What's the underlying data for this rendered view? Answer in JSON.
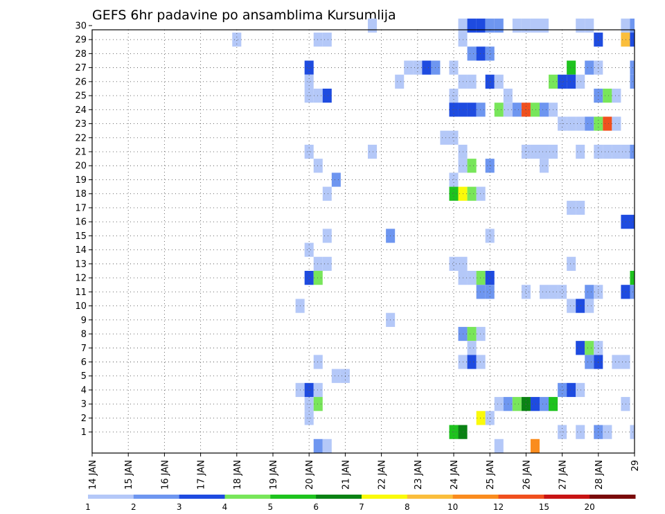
{
  "chart_data": {
    "type": "heatmap",
    "title": "GEFS 6hr padavine po ansamblima Kursumlija",
    "x_ticks": [
      "14 JAN",
      "15 JAN",
      "16 JAN",
      "17 JAN",
      "18 JAN",
      "19 JAN",
      "20 JAN",
      "21 JAN",
      "22 JAN",
      "23 JAN",
      "24 JAN",
      "25 JAN",
      "26 JAN",
      "27 JAN",
      "28 JAN",
      "29"
    ],
    "xlim": [
      "14 JAN",
      "29 JAN"
    ],
    "y_ticks": [
      "1",
      "2",
      "3",
      "4",
      "5",
      "6",
      "7",
      "8",
      "9",
      "10",
      "11",
      "12",
      "13",
      "14",
      "15",
      "16",
      "17",
      "18",
      "19",
      "20",
      "21",
      "22",
      "23",
      "24",
      "25",
      "26",
      "27",
      "28",
      "29",
      "30"
    ],
    "ylim": [
      0,
      30
    ],
    "grid": true,
    "step_hours": 6,
    "legend": {
      "placement": "bottom",
      "labels": [
        "1",
        "2",
        "3",
        "4",
        "5",
        "6",
        "7",
        "8",
        "10",
        "12",
        "15",
        "20"
      ],
      "colors": [
        "#b4c8f8",
        "#6e96f0",
        "#1e4be0",
        "#78e65a",
        "#1ec31e",
        "#0a8214",
        "#fafa0a",
        "#fabe3c",
        "#fa8c1e",
        "#f0501e",
        "#c81414",
        "#7a0a0a"
      ]
    },
    "cells": [
      {
        "m": 30,
        "h": [
          [
            24.25,
            1
          ],
          [
            26.25,
            1
          ],
          [
            26.5,
            1
          ],
          [
            27.5,
            1
          ],
          [
            27.75,
            1
          ],
          [
            28.75,
            1
          ],
          [
            29,
            2
          ],
          [
            21.75,
            1
          ],
          [
            24.75,
            3
          ],
          [
            25,
            2
          ],
          [
            25.25,
            2
          ],
          [
            25.75,
            1
          ],
          [
            26,
            1
          ]
        ]
      },
      {
        "m": 30,
        "h": [
          [
            24.5,
            3
          ]
        ]
      },
      {
        "m": 29,
        "h": [
          [
            18,
            1
          ],
          [
            20.25,
            1
          ],
          [
            20.5,
            1
          ],
          [
            24.25,
            1
          ],
          [
            28,
            3
          ],
          [
            28.75,
            8
          ],
          [
            29,
            3
          ]
        ]
      },
      {
        "m": 28,
        "h": [
          [
            24.5,
            2
          ],
          [
            24.75,
            3
          ],
          [
            25,
            2
          ]
        ]
      },
      {
        "m": 27,
        "h": [
          [
            20,
            3
          ],
          [
            22.75,
            1
          ],
          [
            23,
            1
          ],
          [
            23.25,
            3
          ],
          [
            23.5,
            2
          ],
          [
            24,
            1
          ],
          [
            27.25,
            5
          ],
          [
            27.75,
            2
          ],
          [
            28,
            1
          ],
          [
            29,
            2
          ]
        ]
      },
      {
        "m": 26,
        "h": [
          [
            20,
            1
          ],
          [
            22.5,
            1
          ],
          [
            24.25,
            1
          ],
          [
            24.5,
            1
          ],
          [
            25,
            3
          ],
          [
            25.25,
            1
          ],
          [
            26.75,
            4
          ],
          [
            27,
            3
          ],
          [
            27.25,
            3
          ],
          [
            27.5,
            1
          ],
          [
            29,
            2
          ]
        ]
      },
      {
        "m": 25,
        "h": [
          [
            20,
            1
          ],
          [
            20.25,
            1
          ],
          [
            20.5,
            3
          ],
          [
            24,
            1
          ],
          [
            25.5,
            1
          ],
          [
            28,
            2
          ],
          [
            28.25,
            4
          ],
          [
            28.5,
            1
          ]
        ]
      },
      {
        "m": 24,
        "h": [
          [
            24,
            3
          ],
          [
            24.25,
            3
          ],
          [
            24.5,
            3
          ],
          [
            24.75,
            2
          ],
          [
            25.25,
            4
          ],
          [
            25.5,
            1
          ],
          [
            25.75,
            2
          ],
          [
            26,
            10
          ],
          [
            26.25,
            4
          ],
          [
            26.5,
            2
          ],
          [
            26.75,
            1
          ]
        ]
      },
      {
        "m": 23,
        "h": [
          [
            27,
            1
          ],
          [
            27.25,
            1
          ],
          [
            27.5,
            1
          ],
          [
            27.75,
            2
          ],
          [
            28,
            4
          ],
          [
            28.25,
            10
          ],
          [
            28.5,
            1
          ]
        ]
      },
      {
        "m": 22,
        "h": [
          [
            23.75,
            1
          ],
          [
            24,
            1
          ]
        ]
      },
      {
        "m": 21,
        "h": [
          [
            20,
            1
          ],
          [
            21.75,
            1
          ],
          [
            24.25,
            1
          ],
          [
            26,
            1
          ],
          [
            26.25,
            1
          ],
          [
            26.5,
            1
          ],
          [
            26.75,
            1
          ],
          [
            27.5,
            1
          ],
          [
            28,
            1
          ],
          [
            28.25,
            1
          ],
          [
            28.5,
            1
          ],
          [
            28.75,
            1
          ],
          [
            29,
            2
          ]
        ]
      },
      {
        "m": 20,
        "h": [
          [
            20.25,
            1
          ],
          [
            24.25,
            1
          ],
          [
            24.5,
            4
          ],
          [
            25,
            2
          ],
          [
            26.5,
            1
          ]
        ]
      },
      {
        "m": 19,
        "h": [
          [
            20.75,
            2
          ],
          [
            24,
            1
          ]
        ]
      },
      {
        "m": 18,
        "h": [
          [
            20.5,
            1
          ],
          [
            24,
            5
          ],
          [
            24.25,
            7
          ],
          [
            24.5,
            4
          ],
          [
            24.75,
            1
          ]
        ]
      },
      {
        "m": 17,
        "h": [
          [
            27.25,
            1
          ],
          [
            27.5,
            1
          ]
        ]
      },
      {
        "m": 16,
        "h": [
          [
            28.75,
            3
          ],
          [
            29,
            3
          ]
        ]
      },
      {
        "m": 15,
        "h": [
          [
            20.5,
            1
          ],
          [
            22.25,
            2
          ],
          [
            25,
            1
          ]
        ]
      },
      {
        "m": 14,
        "h": [
          [
            20,
            1
          ]
        ]
      },
      {
        "m": 13,
        "h": [
          [
            20.25,
            1
          ],
          [
            20.5,
            1
          ],
          [
            24,
            1
          ],
          [
            24.25,
            1
          ],
          [
            27.25,
            1
          ]
        ]
      },
      {
        "m": 12,
        "h": [
          [
            20,
            3
          ],
          [
            20.25,
            4
          ],
          [
            24.5,
            1
          ],
          [
            24.75,
            4
          ],
          [
            25,
            3
          ],
          [
            24.25,
            1
          ],
          [
            29,
            5
          ]
        ]
      },
      {
        "m": 11,
        "h": [
          [
            24.75,
            2
          ],
          [
            25,
            2
          ],
          [
            26,
            1
          ],
          [
            26.5,
            1
          ],
          [
            26.75,
            1
          ],
          [
            27,
            1
          ],
          [
            27.75,
            2
          ],
          [
            28,
            1
          ],
          [
            28.75,
            3
          ],
          [
            29,
            2
          ]
        ]
      },
      {
        "m": 10,
        "h": [
          [
            19.75,
            1
          ],
          [
            27.25,
            1
          ],
          [
            27.5,
            3
          ],
          [
            27.75,
            1
          ]
        ]
      },
      {
        "m": 9,
        "h": [
          [
            22.25,
            1
          ]
        ]
      },
      {
        "m": 8,
        "h": [
          [
            24.25,
            2
          ],
          [
            24.5,
            4
          ],
          [
            24.75,
            1
          ]
        ]
      },
      {
        "m": 7,
        "h": [
          [
            24.5,
            1
          ],
          [
            27.5,
            3
          ],
          [
            27.75,
            4
          ],
          [
            28,
            1
          ]
        ]
      },
      {
        "m": 6,
        "h": [
          [
            20.25,
            1
          ],
          [
            24.25,
            1
          ],
          [
            24.5,
            3
          ],
          [
            24.75,
            1
          ],
          [
            27.75,
            2
          ],
          [
            28,
            3
          ],
          [
            28.5,
            1
          ],
          [
            28.75,
            1
          ]
        ]
      },
      {
        "m": 5,
        "h": [
          [
            20.75,
            1
          ],
          [
            21,
            1
          ]
        ]
      },
      {
        "m": 4,
        "h": [
          [
            19.75,
            1
          ],
          [
            20,
            3
          ],
          [
            20.25,
            1
          ],
          [
            27,
            2
          ],
          [
            27.25,
            3
          ],
          [
            27.5,
            1
          ]
        ]
      },
      {
        "m": 3,
        "h": [
          [
            20,
            1
          ],
          [
            20.25,
            4
          ],
          [
            25.25,
            1
          ],
          [
            25.5,
            2
          ],
          [
            25.75,
            4
          ],
          [
            26,
            6
          ],
          [
            26.25,
            3
          ],
          [
            26.5,
            2
          ],
          [
            26.75,
            5
          ],
          [
            28.75,
            1
          ]
        ]
      },
      {
        "m": 2,
        "h": [
          [
            20,
            1
          ],
          [
            24.75,
            7
          ],
          [
            25,
            1
          ]
        ]
      },
      {
        "m": 1,
        "h": [
          [
            24,
            5
          ],
          [
            24.25,
            6
          ],
          [
            27,
            1
          ],
          [
            27.5,
            1
          ],
          [
            28,
            2
          ],
          [
            28.25,
            1
          ],
          [
            29,
            1
          ]
        ]
      },
      {
        "m": 0,
        "h": [
          [
            20.25,
            2
          ],
          [
            20.5,
            1
          ],
          [
            25.25,
            1
          ],
          [
            26.25,
            9
          ]
        ]
      }
    ]
  }
}
